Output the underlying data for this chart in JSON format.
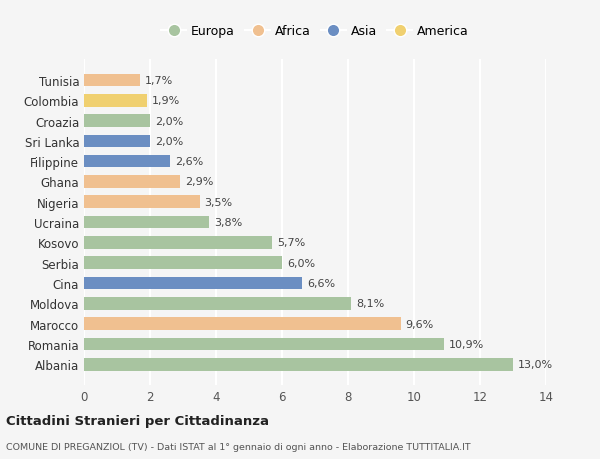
{
  "categories": [
    "Albania",
    "Romania",
    "Marocco",
    "Moldova",
    "Cina",
    "Serbia",
    "Kosovo",
    "Ucraina",
    "Nigeria",
    "Ghana",
    "Filippine",
    "Sri Lanka",
    "Croazia",
    "Colombia",
    "Tunisia"
  ],
  "values": [
    13.0,
    10.9,
    9.6,
    8.1,
    6.6,
    6.0,
    5.7,
    3.8,
    3.5,
    2.9,
    2.6,
    2.0,
    2.0,
    1.9,
    1.7
  ],
  "labels": [
    "13,0%",
    "10,9%",
    "9,6%",
    "8,1%",
    "6,6%",
    "6,0%",
    "5,7%",
    "3,8%",
    "3,5%",
    "2,9%",
    "2,6%",
    "2,0%",
    "2,0%",
    "1,9%",
    "1,7%"
  ],
  "continents": [
    "Europa",
    "Europa",
    "Africa",
    "Europa",
    "Asia",
    "Europa",
    "Europa",
    "Europa",
    "Africa",
    "Africa",
    "Asia",
    "Asia",
    "Europa",
    "America",
    "Africa"
  ],
  "continent_colors": {
    "Europa": "#a8c4a0",
    "Africa": "#f0c090",
    "Asia": "#6b8ec2",
    "America": "#f0d070"
  },
  "legend_order": [
    "Europa",
    "Africa",
    "Asia",
    "America"
  ],
  "xlim": [
    0,
    14
  ],
  "xticks": [
    0,
    2,
    4,
    6,
    8,
    10,
    12,
    14
  ],
  "title": "Cittadini Stranieri per Cittadinanza",
  "subtitle": "COMUNE DI PREGANZIOL (TV) - Dati ISTAT al 1° gennaio di ogni anno - Elaborazione TUTTITALIA.IT",
  "background_color": "#f5f5f5",
  "grid_color": "#ffffff",
  "bar_height": 0.62
}
